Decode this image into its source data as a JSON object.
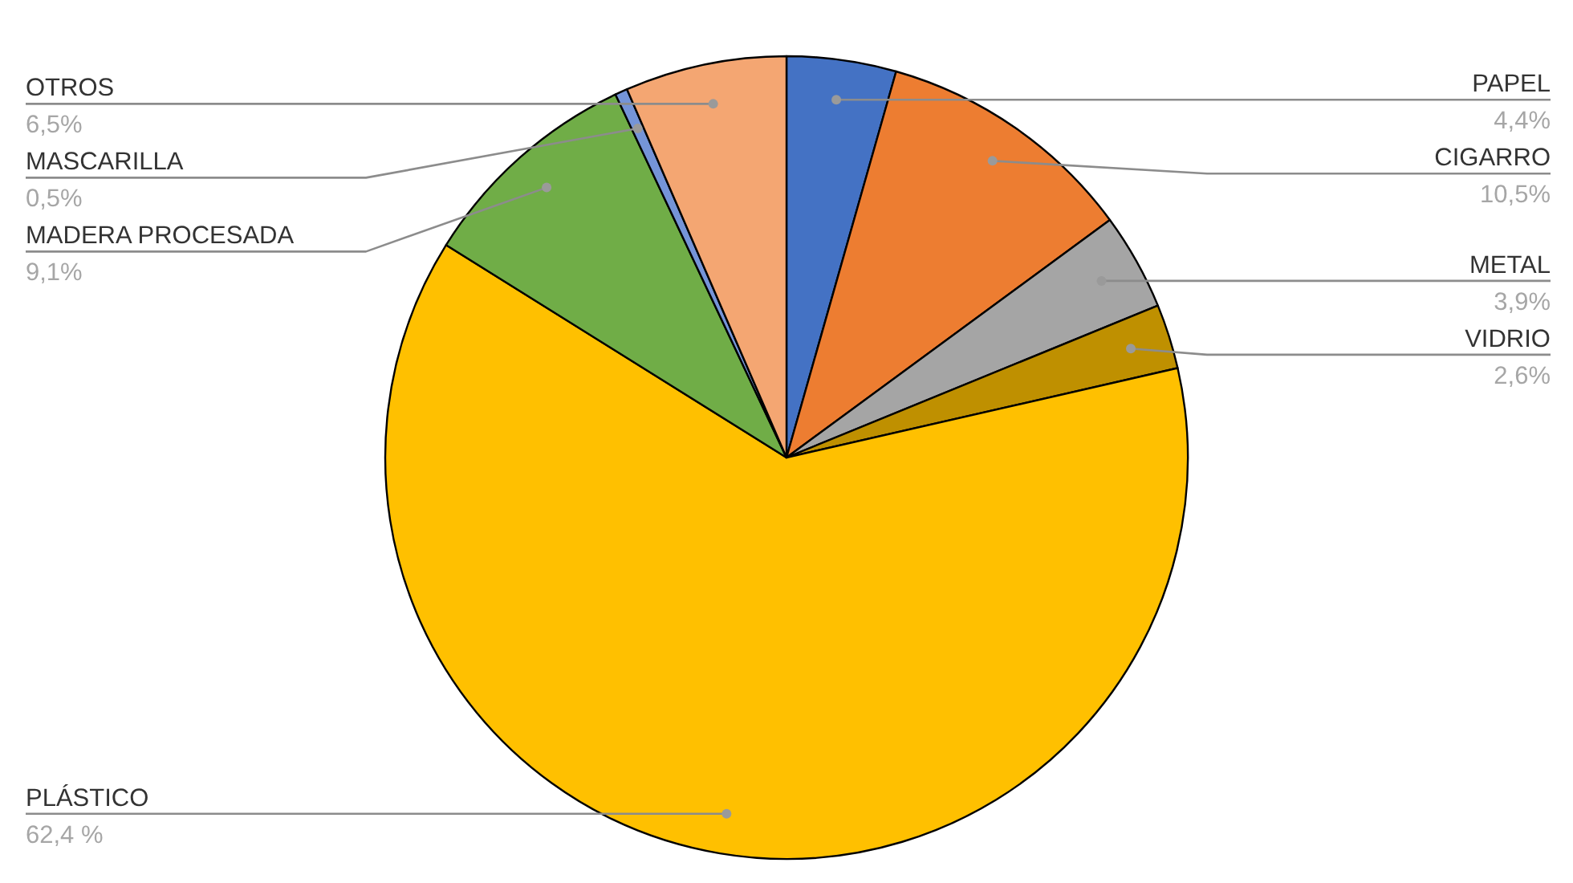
{
  "chart_data": {
    "type": "pie",
    "categories": [
      "PAPEL",
      "CIGARRO",
      "METAL",
      "VIDRIO",
      "PLÁSTICO",
      "MADERA PROCESADA",
      "MASCARILLA",
      "OTROS"
    ],
    "values": [
      4.4,
      10.5,
      3.9,
      2.6,
      62.4,
      9.1,
      0.5,
      6.5
    ],
    "colors": [
      "#4472c4",
      "#ed7d31",
      "#a5a5a5",
      "#bf9000",
      "#ffc000",
      "#70ad47",
      "#7594d8",
      "#f4a672"
    ],
    "value_labels": [
      "4,4%",
      "10,5%",
      "3,9%",
      "2,6%",
      "62,4 %",
      "9,1%",
      "0,5%",
      "6,5%"
    ]
  }
}
